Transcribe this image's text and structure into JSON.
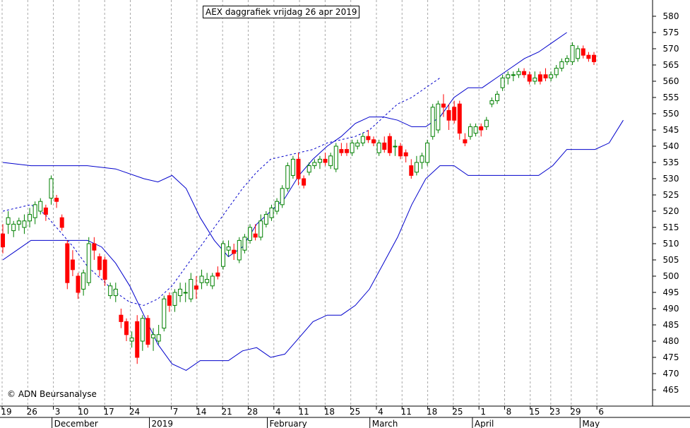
{
  "chart_data": {
    "type": "candlestick",
    "title": "AEX daggrafiek vrijdag 26 apr 2019",
    "copyright": "© ADN Beursanalyse",
    "ylim": [
      460,
      585
    ],
    "y_ticks": [
      465,
      470,
      475,
      480,
      485,
      490,
      495,
      500,
      505,
      510,
      515,
      520,
      525,
      530,
      535,
      540,
      545,
      550,
      555,
      560,
      565,
      570,
      575,
      580
    ],
    "x_ticks": [
      {
        "label": "19",
        "x": 0
      },
      {
        "label": "26",
        "x": 5
      },
      {
        "label": "3",
        "x": 10
      },
      {
        "label": "10",
        "x": 15
      },
      {
        "label": "17",
        "x": 20
      },
      {
        "label": "24",
        "x": 25
      },
      {
        "label": "7",
        "x": 33
      },
      {
        "label": "14",
        "x": 38
      },
      {
        "label": "21",
        "x": 43
      },
      {
        "label": "28",
        "x": 48
      },
      {
        "label": "4",
        "x": 53
      },
      {
        "label": "11",
        "x": 58
      },
      {
        "label": "18",
        "x": 63
      },
      {
        "label": "25",
        "x": 68
      },
      {
        "label": "4",
        "x": 73
      },
      {
        "label": "11",
        "x": 78
      },
      {
        "label": "18",
        "x": 83
      },
      {
        "label": "25",
        "x": 88
      },
      {
        "label": "1",
        "x": 93
      },
      {
        "label": "8",
        "x": 98
      },
      {
        "label": "15",
        "x": 103
      },
      {
        "label": "23",
        "x": 107
      },
      {
        "label": "29",
        "x": 111
      },
      {
        "label": "6",
        "x": 116
      }
    ],
    "x_months": [
      {
        "label": "December",
        "x": 10
      },
      {
        "label": "2019",
        "x": 29
      },
      {
        "label": "February",
        "x": 52
      },
      {
        "label": "March",
        "x": 72
      },
      {
        "label": "April",
        "x": 92
      },
      {
        "label": "May",
        "x": 113
      }
    ],
    "x_range": [
      0,
      121
    ],
    "colors": {
      "up": "#008000",
      "down": "#ff0000",
      "band": "#0000cc",
      "grid": "#a8a8a8"
    },
    "candles": [
      {
        "o": 513,
        "h": 516,
        "l": 507,
        "c": 509
      },
      {
        "o": 516,
        "h": 520,
        "l": 513,
        "c": 518
      },
      {
        "o": 514,
        "h": 517,
        "l": 512,
        "c": 516
      },
      {
        "o": 516,
        "h": 518,
        "l": 514,
        "c": 517
      },
      {
        "o": 515,
        "h": 519,
        "l": 513,
        "c": 517
      },
      {
        "o": 517,
        "h": 521,
        "l": 515,
        "c": 519
      },
      {
        "o": 518,
        "h": 523,
        "l": 516,
        "c": 522
      },
      {
        "o": 520,
        "h": 524,
        "l": 519,
        "c": 523
      },
      {
        "o": 521,
        "h": 522,
        "l": 517,
        "c": 519
      },
      {
        "o": 524,
        "h": 531,
        "l": 522,
        "c": 530
      },
      {
        "o": 524,
        "h": 525,
        "l": 521,
        "c": 523
      },
      {
        "o": 518,
        "h": 519,
        "l": 514,
        "c": 515
      },
      {
        "o": 510,
        "h": 511,
        "l": 496,
        "c": 498
      },
      {
        "o": 505,
        "h": 508,
        "l": 500,
        "c": 502
      },
      {
        "o": 500,
        "h": 501,
        "l": 493,
        "c": 495
      },
      {
        "o": 496,
        "h": 502,
        "l": 494,
        "c": 501
      },
      {
        "o": 498,
        "h": 512,
        "l": 497,
        "c": 510
      },
      {
        "o": 510,
        "h": 512,
        "l": 505,
        "c": 508
      },
      {
        "o": 506,
        "h": 507,
        "l": 500,
        "c": 502
      },
      {
        "o": 505,
        "h": 506,
        "l": 497,
        "c": 499
      },
      {
        "o": 494,
        "h": 498,
        "l": 493,
        "c": 497
      },
      {
        "o": 494,
        "h": 498,
        "l": 492,
        "c": 496
      },
      {
        "o": 488,
        "h": 490,
        "l": 484,
        "c": 486
      },
      {
        "o": 486,
        "h": 487,
        "l": 480,
        "c": 482
      },
      {
        "o": 480,
        "h": 483,
        "l": 478,
        "c": 481
      },
      {
        "o": 486,
        "h": 488,
        "l": 473,
        "c": 475
      },
      {
        "o": 480,
        "h": 488,
        "l": 477,
        "c": 487
      },
      {
        "o": 487,
        "h": 488,
        "l": 478,
        "c": 479
      },
      {
        "o": 481,
        "h": 484,
        "l": 477,
        "c": 482
      },
      {
        "o": 480,
        "h": 485,
        "l": 479,
        "c": 482
      },
      {
        "o": 484,
        "h": 494,
        "l": 483,
        "c": 493
      },
      {
        "o": 494,
        "h": 495,
        "l": 489,
        "c": 491
      },
      {
        "o": 491,
        "h": 496,
        "l": 489,
        "c": 495
      },
      {
        "o": 494,
        "h": 498,
        "l": 492,
        "c": 496
      },
      {
        "o": 495,
        "h": 498,
        "l": 492,
        "c": 495
      },
      {
        "o": 493,
        "h": 501,
        "l": 492,
        "c": 499
      },
      {
        "o": 497,
        "h": 500,
        "l": 493,
        "c": 496
      },
      {
        "o": 498,
        "h": 502,
        "l": 496,
        "c": 500
      },
      {
        "o": 498,
        "h": 501,
        "l": 497,
        "c": 499
      },
      {
        "o": 497,
        "h": 501,
        "l": 496,
        "c": 500
      },
      {
        "o": 501,
        "h": 503,
        "l": 499,
        "c": 500
      },
      {
        "o": 503,
        "h": 511,
        "l": 502,
        "c": 510
      },
      {
        "o": 508,
        "h": 511,
        "l": 506,
        "c": 509
      },
      {
        "o": 508,
        "h": 510,
        "l": 505,
        "c": 507
      },
      {
        "o": 505,
        "h": 512,
        "l": 504,
        "c": 511
      },
      {
        "o": 508,
        "h": 513,
        "l": 507,
        "c": 512
      },
      {
        "o": 511,
        "h": 516,
        "l": 510,
        "c": 515
      },
      {
        "o": 513,
        "h": 516,
        "l": 511,
        "c": 512
      },
      {
        "o": 512,
        "h": 519,
        "l": 511,
        "c": 517
      },
      {
        "o": 516,
        "h": 520,
        "l": 515,
        "c": 519
      },
      {
        "o": 518,
        "h": 522,
        "l": 517,
        "c": 521
      },
      {
        "o": 520,
        "h": 524,
        "l": 519,
        "c": 523
      },
      {
        "o": 522,
        "h": 528,
        "l": 521,
        "c": 527
      },
      {
        "o": 527,
        "h": 535,
        "l": 526,
        "c": 534
      },
      {
        "o": 531,
        "h": 537,
        "l": 530,
        "c": 536
      },
      {
        "o": 536,
        "h": 538,
        "l": 528,
        "c": 530
      },
      {
        "o": 530,
        "h": 531,
        "l": 527,
        "c": 528
      },
      {
        "o": 532,
        "h": 535,
        "l": 531,
        "c": 534
      },
      {
        "o": 534,
        "h": 536,
        "l": 533,
        "c": 535
      },
      {
        "o": 535,
        "h": 537,
        "l": 533,
        "c": 536
      },
      {
        "o": 536,
        "h": 538,
        "l": 534,
        "c": 535
      },
      {
        "o": 534,
        "h": 538,
        "l": 533,
        "c": 537
      },
      {
        "o": 533,
        "h": 541,
        "l": 532,
        "c": 540
      },
      {
        "o": 539,
        "h": 541,
        "l": 537,
        "c": 538
      },
      {
        "o": 539,
        "h": 541,
        "l": 537,
        "c": 538
      },
      {
        "o": 538,
        "h": 542,
        "l": 537,
        "c": 541
      },
      {
        "o": 540,
        "h": 542,
        "l": 539,
        "c": 541
      },
      {
        "o": 541,
        "h": 544,
        "l": 540,
        "c": 543
      },
      {
        "o": 543,
        "h": 545,
        "l": 541,
        "c": 542
      },
      {
        "o": 542,
        "h": 543,
        "l": 540,
        "c": 541
      },
      {
        "o": 538,
        "h": 542,
        "l": 537,
        "c": 541
      },
      {
        "o": 541,
        "h": 543,
        "l": 538,
        "c": 539
      },
      {
        "o": 543,
        "h": 544,
        "l": 537,
        "c": 538
      },
      {
        "o": 540,
        "h": 542,
        "l": 537,
        "c": 540
      },
      {
        "o": 540,
        "h": 541,
        "l": 536,
        "c": 537
      },
      {
        "o": 538,
        "h": 539,
        "l": 535,
        "c": 537
      },
      {
        "o": 534,
        "h": 536,
        "l": 530,
        "c": 531
      },
      {
        "o": 532,
        "h": 537,
        "l": 531,
        "c": 535
      },
      {
        "o": 535,
        "h": 538,
        "l": 533,
        "c": 537
      },
      {
        "o": 535,
        "h": 542,
        "l": 534,
        "c": 541
      },
      {
        "o": 543,
        "h": 553,
        "l": 542,
        "c": 552
      },
      {
        "o": 545,
        "h": 554,
        "l": 544,
        "c": 553
      },
      {
        "o": 553,
        "h": 556,
        "l": 549,
        "c": 552
      },
      {
        "o": 551,
        "h": 553,
        "l": 545,
        "c": 548
      },
      {
        "o": 552,
        "h": 554,
        "l": 547,
        "c": 548
      },
      {
        "o": 553,
        "h": 554,
        "l": 542,
        "c": 544
      },
      {
        "o": 542,
        "h": 544,
        "l": 540,
        "c": 541
      },
      {
        "o": 543,
        "h": 547,
        "l": 542,
        "c": 546
      },
      {
        "o": 544,
        "h": 547,
        "l": 543,
        "c": 546
      },
      {
        "o": 546,
        "h": 547,
        "l": 543,
        "c": 545
      },
      {
        "o": 546,
        "h": 549,
        "l": 545,
        "c": 548
      },
      {
        "o": 553,
        "h": 555,
        "l": 552,
        "c": 554
      },
      {
        "o": 554,
        "h": 557,
        "l": 553,
        "c": 556
      },
      {
        "o": 558,
        "h": 562,
        "l": 557,
        "c": 561
      },
      {
        "o": 561,
        "h": 563,
        "l": 559,
        "c": 562
      },
      {
        "o": 562,
        "h": 563,
        "l": 560,
        "c": 562
      },
      {
        "o": 562,
        "h": 564,
        "l": 561,
        "c": 563
      },
      {
        "o": 563,
        "h": 564,
        "l": 561,
        "c": 562
      },
      {
        "o": 562,
        "h": 563,
        "l": 559,
        "c": 560
      },
      {
        "o": 560,
        "h": 563,
        "l": 559,
        "c": 561
      },
      {
        "o": 562,
        "h": 563,
        "l": 559,
        "c": 560
      },
      {
        "o": 562,
        "h": 564,
        "l": 560,
        "c": 561
      },
      {
        "o": 561,
        "h": 563,
        "l": 560,
        "c": 562
      },
      {
        "o": 562,
        "h": 565,
        "l": 561,
        "c": 564
      },
      {
        "o": 564,
        "h": 567,
        "l": 563,
        "c": 566
      },
      {
        "o": 566,
        "h": 568,
        "l": 565,
        "c": 567
      },
      {
        "o": 566,
        "h": 572,
        "l": 565,
        "c": 571
      },
      {
        "o": 567,
        "h": 571,
        "l": 566,
        "c": 570
      },
      {
        "o": 570,
        "h": 571,
        "l": 567,
        "c": 568
      },
      {
        "o": 568,
        "h": 569,
        "l": 566,
        "c": 567
      },
      {
        "o": 568,
        "h": 569,
        "l": 565,
        "c": 566
      }
    ],
    "bands": {
      "middle": [
        [
          0,
          520
        ],
        [
          5,
          521
        ],
        [
          10,
          522
        ],
        [
          15,
          519
        ],
        [
          20,
          514
        ],
        [
          25,
          509
        ],
        [
          30,
          503
        ],
        [
          35,
          499
        ],
        [
          40,
          495
        ],
        [
          45,
          492
        ],
        [
          50,
          491
        ],
        [
          55,
          493
        ],
        [
          60,
          497
        ],
        [
          65,
          503
        ],
        [
          70,
          509
        ],
        [
          75,
          515
        ],
        [
          80,
          521
        ],
        [
          85,
          527
        ],
        [
          90,
          532
        ],
        [
          95,
          536
        ],
        [
          100,
          537
        ],
        [
          105,
          538
        ],
        [
          110,
          539
        ],
        [
          115,
          541
        ],
        [
          120,
          542
        ],
        [
          125,
          543
        ],
        [
          130,
          545
        ],
        [
          135,
          549
        ],
        [
          140,
          553
        ],
        [
          145,
          555
        ],
        [
          150,
          558
        ],
        [
          155,
          561
        ]
      ],
      "upper": [
        [
          0,
          535
        ],
        [
          10,
          534
        ],
        [
          20,
          534
        ],
        [
          30,
          534
        ],
        [
          40,
          533
        ],
        [
          50,
          530
        ],
        [
          55,
          529
        ],
        [
          60,
          531
        ],
        [
          65,
          527
        ],
        [
          70,
          518
        ],
        [
          75,
          511
        ],
        [
          80,
          506
        ],
        [
          85,
          509
        ],
        [
          90,
          516
        ],
        [
          95,
          520
        ],
        [
          100,
          524
        ],
        [
          105,
          531
        ],
        [
          110,
          536
        ],
        [
          115,
          540
        ],
        [
          120,
          543
        ],
        [
          125,
          547
        ],
        [
          130,
          549
        ],
        [
          135,
          549
        ],
        [
          140,
          548
        ],
        [
          145,
          546
        ],
        [
          150,
          546
        ],
        [
          155,
          549
        ],
        [
          160,
          555
        ],
        [
          165,
          558
        ],
        [
          170,
          558
        ],
        [
          175,
          561
        ],
        [
          180,
          564
        ],
        [
          185,
          567
        ],
        [
          190,
          569
        ],
        [
          195,
          572
        ],
        [
          200,
          575
        ]
      ],
      "lower": [
        [
          0,
          505
        ],
        [
          5,
          508
        ],
        [
          10,
          511
        ],
        [
          20,
          511
        ],
        [
          30,
          511
        ],
        [
          35,
          509
        ],
        [
          40,
          504
        ],
        [
          45,
          497
        ],
        [
          50,
          488
        ],
        [
          55,
          479
        ],
        [
          60,
          473
        ],
        [
          65,
          471
        ],
        [
          70,
          474
        ],
        [
          75,
          474
        ],
        [
          80,
          474
        ],
        [
          85,
          477
        ],
        [
          90,
          478
        ],
        [
          95,
          475
        ],
        [
          100,
          476
        ],
        [
          105,
          481
        ],
        [
          110,
          486
        ],
        [
          115,
          488
        ],
        [
          120,
          488
        ],
        [
          125,
          491
        ],
        [
          130,
          496
        ],
        [
          135,
          504
        ],
        [
          140,
          512
        ],
        [
          145,
          522
        ],
        [
          150,
          530
        ],
        [
          155,
          534
        ],
        [
          160,
          534
        ],
        [
          165,
          531
        ],
        [
          170,
          531
        ],
        [
          175,
          531
        ],
        [
          180,
          531
        ],
        [
          185,
          531
        ],
        [
          190,
          531
        ],
        [
          195,
          534
        ],
        [
          200,
          539
        ],
        [
          205,
          539
        ],
        [
          210,
          539
        ],
        [
          215,
          541
        ],
        [
          220,
          548
        ]
      ]
    }
  }
}
